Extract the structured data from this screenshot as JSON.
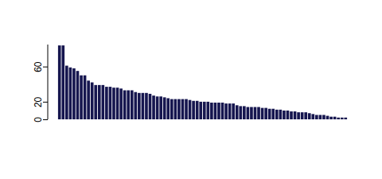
{
  "chart_data": {
    "type": "bar",
    "color": "#16164f",
    "values": [
      84,
      84,
      61,
      59,
      58,
      55,
      50,
      50,
      44,
      42,
      39,
      39,
      39,
      37,
      37,
      36,
      36,
      35,
      33,
      33,
      33,
      31,
      30,
      30,
      30,
      29,
      27,
      26,
      26,
      25,
      24,
      23,
      23,
      23,
      23,
      23,
      22,
      21,
      21,
      20,
      20,
      20,
      19,
      19,
      19,
      19,
      18,
      18,
      18,
      16,
      15,
      15,
      14,
      14,
      14,
      14,
      13,
      13,
      12,
      12,
      11,
      11,
      10,
      10,
      9,
      9,
      8,
      8,
      8,
      7,
      6,
      5,
      5,
      5,
      4,
      3,
      3,
      2,
      2,
      2
    ],
    "ylim": [
      0,
      85
    ],
    "yticks": [
      0,
      20,
      60
    ],
    "grid": false,
    "tick_labels": "y"
  }
}
